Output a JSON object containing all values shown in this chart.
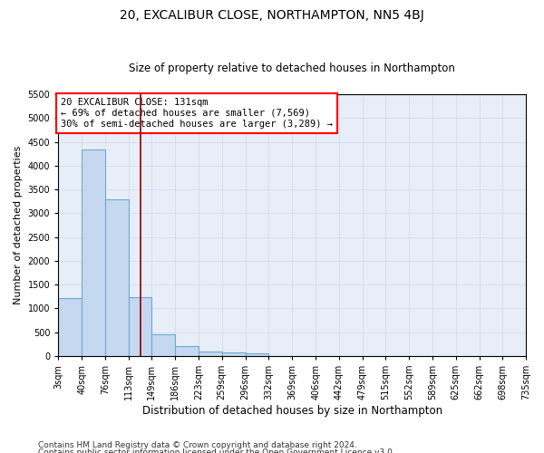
{
  "title": "20, EXCALIBUR CLOSE, NORTHAMPTON, NN5 4BJ",
  "subtitle": "Size of property relative to detached houses in Northampton",
  "xlabel": "Distribution of detached houses by size in Northampton",
  "ylabel": "Number of detached properties",
  "footer_line1": "Contains HM Land Registry data © Crown copyright and database right 2024.",
  "footer_line2": "Contains public sector information licensed under the Open Government Licence v3.0.",
  "annotation_line1": "20 EXCALIBUR CLOSE: 131sqm",
  "annotation_line2": "← 69% of detached houses are smaller (7,569)",
  "annotation_line3": "30% of semi-detached houses are larger (3,289) →",
  "bar_edges": [
    3,
    40,
    76,
    113,
    149,
    186,
    223,
    259,
    296,
    332,
    369,
    406,
    442,
    479,
    515,
    552,
    589,
    625,
    662,
    698,
    735
  ],
  "bar_heights": [
    1220,
    4330,
    3290,
    1230,
    460,
    200,
    100,
    70,
    50,
    0,
    0,
    0,
    0,
    0,
    0,
    0,
    0,
    0,
    0,
    0
  ],
  "bar_color": "#c5d8ef",
  "bar_edge_color": "#6aaad4",
  "vline_color": "#8b0000",
  "vline_x": 131,
  "ylim": [
    0,
    5500
  ],
  "yticks": [
    0,
    500,
    1000,
    1500,
    2000,
    2500,
    3000,
    3500,
    4000,
    4500,
    5000,
    5500
  ],
  "grid_color": "#d0d8e8",
  "background_color": "#e8eef8",
  "title_fontsize": 10,
  "subtitle_fontsize": 8.5,
  "xlabel_fontsize": 8.5,
  "ylabel_fontsize": 8,
  "tick_fontsize": 7,
  "annotation_fontsize": 7.5,
  "footer_fontsize": 6.5
}
